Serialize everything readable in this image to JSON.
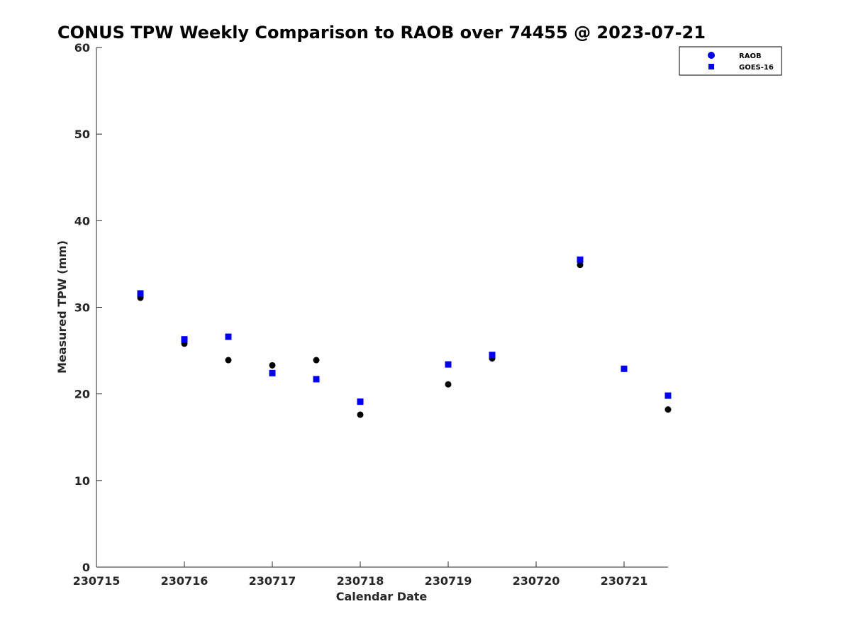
{
  "chart_data": {
    "type": "scatter",
    "title": "CONUS TPW Weekly Comparison to RAOB over 74455 @ 2023-07-21",
    "xlabel": "Calendar Date",
    "ylabel": "Measured TPW (mm)",
    "xlim": [
      230715,
      230721.5
    ],
    "ylim": [
      0,
      60
    ],
    "x_ticks": [
      230715,
      230716,
      230717,
      230718,
      230719,
      230720,
      230721
    ],
    "x_tick_labels": [
      "230715",
      "230716",
      "230717",
      "230718",
      "230719",
      "230720",
      "230721"
    ],
    "y_ticks": [
      0,
      10,
      20,
      30,
      40,
      50,
      60
    ],
    "y_tick_labels": [
      "0",
      "10",
      "20",
      "30",
      "40",
      "50",
      "60"
    ],
    "grid": false,
    "legend_position": "top-right",
    "legend": [
      {
        "name": "RAOB",
        "marker": "circle",
        "color": "#0000ee"
      },
      {
        "name": "GOES-16",
        "marker": "square",
        "color": "#0000ee"
      }
    ],
    "series": [
      {
        "name": "RAOB",
        "marker": "circle",
        "color": "#000000",
        "x": [
          230715.5,
          230716,
          230716.5,
          230717,
          230717.5,
          230718,
          230719,
          230719.5,
          230720.5,
          230721,
          230721.5
        ],
        "y": [
          31.1,
          25.8,
          23.9,
          23.3,
          23.9,
          17.6,
          21.1,
          24.1,
          34.9,
          22.9,
          18.2
        ]
      },
      {
        "name": "GOES-16",
        "marker": "square",
        "color": "#0000ee",
        "x": [
          230715.5,
          230716,
          230716.5,
          230717,
          230717.5,
          230718,
          230719,
          230719.5,
          230720.5,
          230721,
          230721.5
        ],
        "y": [
          31.6,
          26.3,
          26.6,
          22.4,
          21.7,
          19.1,
          23.4,
          24.5,
          35.5,
          22.9,
          19.8
        ]
      }
    ]
  }
}
